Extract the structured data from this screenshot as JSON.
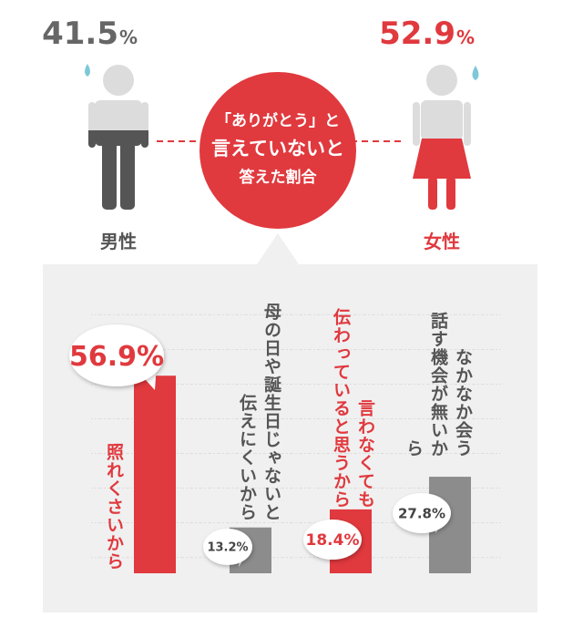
{
  "header": {
    "male": {
      "label": "男性",
      "value": 41.5,
      "unit": "%"
    },
    "female": {
      "label": "女性",
      "value": 52.9,
      "unit": "%"
    },
    "center_label": [
      "「ありがとう」と",
      "言えていないと",
      "答えた割合"
    ]
  },
  "chart_data": {
    "type": "bar",
    "categories": [
      "照れくさいから",
      "母の日や誕生日じゃないと\n伝えにくいから",
      "言わなくても\n伝わっていると思うから",
      "なかなか会う\n話す機会が無いから"
    ],
    "values": [
      56.9,
      13.2,
      18.4,
      27.8
    ],
    "value_labels": [
      "56.9%",
      "13.2%",
      "18.4%",
      "27.8%"
    ],
    "colors": [
      "#e0393e",
      "#8c8c8c",
      "#e0393e",
      "#8c8c8c"
    ]
  }
}
